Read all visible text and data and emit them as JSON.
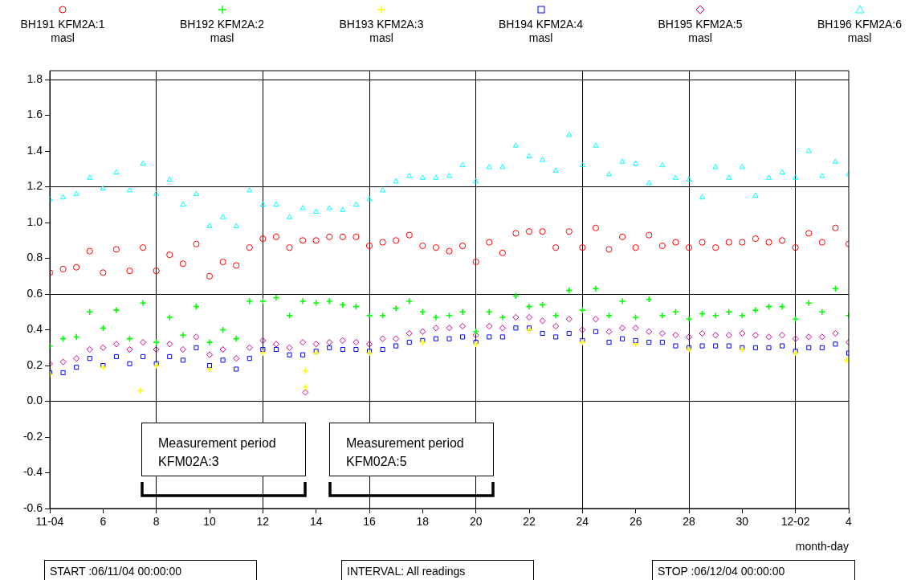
{
  "chart_data": {
    "type": "scatter",
    "xlabel": "month-day",
    "legend": "top",
    "grid": true,
    "xlim": [
      "--11-04",
      "--12-04"
    ],
    "xticks": [
      {
        "value": "--11-04",
        "label": "11-04"
      },
      {
        "value": "--11-06",
        "label": "6"
      },
      {
        "value": "--11-08",
        "label": "8"
      },
      {
        "value": "--11-10",
        "label": "10"
      },
      {
        "value": "--11-12",
        "label": "12"
      },
      {
        "value": "--11-14",
        "label": "14"
      },
      {
        "value": "--11-16",
        "label": "16"
      },
      {
        "value": "--11-18",
        "label": "18"
      },
      {
        "value": "--11-20",
        "label": "20"
      },
      {
        "value": "--11-22",
        "label": "22"
      },
      {
        "value": "--11-24",
        "label": "24"
      },
      {
        "value": "--11-26",
        "label": "26"
      },
      {
        "value": "--11-28",
        "label": "28"
      },
      {
        "value": "--11-30",
        "label": "30"
      },
      {
        "value": "--12-02",
        "label": "12-02"
      },
      {
        "value": "--12-04",
        "label": "4"
      }
    ],
    "ylim": [
      -0.6,
      1.85
    ],
    "yticks": [
      -0.6,
      -0.4,
      -0.2,
      {
        "value": 0,
        "label": "0.0"
      },
      0.2,
      0.4,
      0.6,
      0.8,
      {
        "value": 1,
        "label": "1.0"
      },
      1.2,
      1.4,
      1.6,
      1.8
    ],
    "x": [
      "--11-04",
      "--11-04T12:00",
      "--11-05",
      "--11-05T12:00",
      "--11-06",
      "--11-06T12:00",
      "--11-07",
      "--11-07T12:00",
      "--11-08",
      "--11-08T12:00",
      "--11-09",
      "--11-09T12:00",
      "--11-10",
      "--11-10T12:00",
      "--11-11",
      "--11-11T12:00",
      "--11-12",
      "--11-12T12:00",
      "--11-13",
      "--11-13T12:00",
      "--11-14",
      "--11-14T12:00",
      "--11-15",
      "--11-15T12:00",
      "--11-16",
      "--11-16T12:00",
      "--11-17",
      "--11-17T12:00",
      "--11-18",
      "--11-18T12:00",
      "--11-19",
      "--11-19T12:00",
      "--11-20",
      "--11-20T12:00",
      "--11-21",
      "--11-21T12:00",
      "--11-22",
      "--11-22T12:00",
      "--11-23",
      "--11-23T12:00",
      "--11-24",
      "--11-24T12:00",
      "--11-25",
      "--11-25T12:00",
      "--11-26",
      "--11-26T12:00",
      "--11-27",
      "--11-27T12:00",
      "--11-28",
      "--11-28T12:00",
      "--11-29",
      "--11-29T12:00",
      "--11-30",
      "--11-30T12:00",
      "--12-01",
      "--12-01T12:00",
      "--12-02",
      "--12-02T12:00",
      "--12-03",
      "--12-03T12:00",
      "--12-04"
    ],
    "series": [
      {
        "name": "BH191 KFM2A:1 masl",
        "color": "#ff0000",
        "marker": "circle",
        "values": [
          0.72,
          0.74,
          0.75,
          0.84,
          0.72,
          0.85,
          0.73,
          0.86,
          0.73,
          0.82,
          0.77,
          0.88,
          0.7,
          0.78,
          0.76,
          0.86,
          0.91,
          0.92,
          0.86,
          0.9,
          0.9,
          0.92,
          0.92,
          0.92,
          0.87,
          0.89,
          0.9,
          0.93,
          0.87,
          0.86,
          0.84,
          0.87,
          0.78,
          0.89,
          0.83,
          0.94,
          0.95,
          0.95,
          0.86,
          0.95,
          0.86,
          0.97,
          0.85,
          0.92,
          0.86,
          0.93,
          0.87,
          0.89,
          0.86,
          0.89,
          0.86,
          0.89,
          0.89,
          0.91,
          0.89,
          0.9,
          0.86,
          0.94,
          0.89,
          0.97,
          0.88
        ]
      },
      {
        "name": "BH192 KFM2A:2 masl",
        "color": "#00ff00",
        "marker": "cross",
        "values": [
          0.31,
          0.35,
          0.36,
          0.5,
          0.41,
          0.51,
          0.35,
          0.55,
          0.33,
          0.47,
          0.37,
          0.53,
          0.33,
          0.4,
          0.35,
          0.56,
          0.56,
          0.58,
          0.48,
          0.56,
          0.55,
          0.56,
          0.54,
          0.53,
          0.48,
          0.48,
          0.52,
          0.56,
          0.5,
          0.47,
          0.48,
          0.5,
          0.39,
          0.5,
          0.47,
          0.59,
          0.53,
          0.54,
          0.48,
          0.62,
          0.51,
          0.63,
          0.48,
          0.56,
          0.47,
          0.57,
          0.48,
          0.5,
          0.46,
          0.49,
          0.48,
          0.5,
          0.48,
          0.51,
          0.53,
          0.53,
          0.46,
          0.55,
          0.5,
          0.63,
          0.48
        ]
      },
      {
        "name": "BH193 KFM2A:3 masl",
        "color": "#ffff00",
        "marker": "cross",
        "x": [
          "--11-04",
          "--11-06",
          "--11-07T09:36",
          "--11-08",
          "--11-10",
          "--11-12",
          "--11-13T14:24",
          "--11-13T14:24",
          "--11-14",
          "--11-16",
          "--11-18",
          "--11-20",
          "--11-22",
          "--11-24",
          "--11-26",
          "--11-28",
          "--11-30",
          "--12-02",
          "--12-03T22:00"
        ],
        "values": [
          0.15,
          0.19,
          0.06,
          0.2,
          0.18,
          0.27,
          0.17,
          0.08,
          0.27,
          0.27,
          0.33,
          0.32,
          0.4,
          0.33,
          0.32,
          0.29,
          0.29,
          0.27,
          0.23
        ]
      },
      {
        "name": "BH194 KFM2A:4 masl",
        "color": "#0000ff",
        "marker": "square",
        "values": [
          0.16,
          0.16,
          0.19,
          0.24,
          0.2,
          0.25,
          0.21,
          0.25,
          0.21,
          0.25,
          0.23,
          0.3,
          0.2,
          0.23,
          0.18,
          0.24,
          0.29,
          0.29,
          0.26,
          0.26,
          0.28,
          0.3,
          0.29,
          0.29,
          0.28,
          0.29,
          0.31,
          0.33,
          0.34,
          0.35,
          0.35,
          0.36,
          0.33,
          0.36,
          0.36,
          0.41,
          0.41,
          0.38,
          0.36,
          0.38,
          0.34,
          0.39,
          0.33,
          0.35,
          0.34,
          0.33,
          0.33,
          0.31,
          0.3,
          0.31,
          0.31,
          0.31,
          0.3,
          0.3,
          0.3,
          0.31,
          0.28,
          0.3,
          0.3,
          0.32,
          0.27
        ]
      },
      {
        "name": "BH195 KFM2A:5 masl",
        "color": "#cc0099",
        "marker": "diamond",
        "x": [
          "--11-04",
          "--11-04T12:00",
          "--11-05",
          "--11-05T12:00",
          "--11-06",
          "--11-06T12:00",
          "--11-07",
          "--11-07T12:00",
          "--11-08",
          "--11-08T12:00",
          "--11-09",
          "--11-09T12:00",
          "--11-10",
          "--11-10T12:00",
          "--11-11",
          "--11-11T12:00",
          "--11-12",
          "--11-12T12:00",
          "--11-13",
          "--11-13T12:00",
          "--11-13T14:24",
          "--11-14",
          "--11-14T12:00",
          "--11-15",
          "--11-15T12:00",
          "--11-16",
          "--11-16T12:00",
          "--11-17",
          "--11-17T12:00",
          "--11-18",
          "--11-18T12:00",
          "--11-19",
          "--11-19T12:00",
          "--11-20",
          "--11-20T12:00",
          "--11-21",
          "--11-21T12:00",
          "--11-22",
          "--11-22T12:00",
          "--11-23",
          "--11-23T12:00",
          "--11-24",
          "--11-24T12:00",
          "--11-25",
          "--11-25T12:00",
          "--11-26",
          "--11-26T12:00",
          "--11-27",
          "--11-27T12:00",
          "--11-28",
          "--11-28T12:00",
          "--11-29",
          "--11-29T12:00",
          "--11-30",
          "--11-30T12:00",
          "--12-01",
          "--12-01T12:00",
          "--12-02",
          "--12-02T12:00",
          "--12-03",
          "--12-03T12:00",
          "--12-04"
        ],
        "values": [
          0.21,
          0.22,
          0.24,
          0.29,
          0.3,
          0.32,
          0.29,
          0.33,
          0.29,
          0.32,
          0.29,
          0.36,
          0.26,
          0.29,
          0.24,
          0.3,
          0.34,
          0.32,
          0.3,
          0.33,
          0.05,
          0.32,
          0.33,
          0.34,
          0.33,
          0.32,
          0.35,
          0.35,
          0.38,
          0.39,
          0.41,
          0.41,
          0.42,
          0.37,
          0.42,
          0.41,
          0.47,
          0.47,
          0.45,
          0.42,
          0.46,
          0.4,
          0.46,
          0.39,
          0.41,
          0.41,
          0.39,
          0.38,
          0.37,
          0.36,
          0.38,
          0.37,
          0.37,
          0.38,
          0.37,
          0.36,
          0.37,
          0.35,
          0.36,
          0.36,
          0.38,
          0.33
        ]
      },
      {
        "name": "BH196 KFM2A:6 masl",
        "color": "#00ffff",
        "marker": "triangle",
        "values": [
          1.13,
          1.14,
          1.16,
          1.25,
          1.19,
          1.28,
          1.18,
          1.33,
          1.16,
          1.24,
          1.1,
          1.16,
          0.98,
          1.03,
          0.98,
          1.18,
          1.1,
          1.1,
          1.03,
          1.08,
          1.06,
          1.08,
          1.07,
          1.1,
          1.13,
          1.18,
          1.23,
          1.26,
          1.25,
          1.25,
          1.26,
          1.32,
          1.23,
          1.31,
          1.31,
          1.43,
          1.37,
          1.35,
          1.29,
          1.49,
          1.32,
          1.43,
          1.27,
          1.34,
          1.33,
          1.22,
          1.32,
          1.25,
          1.24,
          1.14,
          1.31,
          1.25,
          1.31,
          1.15,
          1.25,
          1.28,
          1.25,
          1.4,
          1.26,
          1.34,
          1.27
        ]
      }
    ],
    "annotations": [
      "Measurement period KFM02A:3",
      "Measurement period KFM02A:5",
      "START :06/11/04 00:00:00",
      "INTERVAL: All readings",
      "STOP :06/12/04 00:00:00"
    ]
  }
}
